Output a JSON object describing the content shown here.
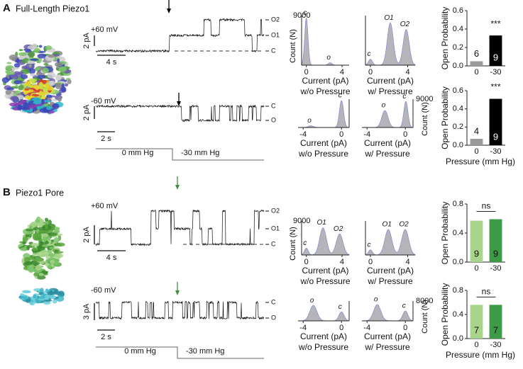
{
  "panels": [
    {
      "letter": "A",
      "title": "Full-Length Piezo1",
      "traces": [
        {
          "voltage": "+60 mV",
          "scale_y": "2 pA",
          "scale_x": "4 s",
          "levels": [
            "O2",
            "O1",
            "C"
          ]
        },
        {
          "voltage": "-60 mV",
          "scale_y": "2 pA",
          "scale_x": "2 s",
          "levels": [
            "C",
            "O"
          ]
        }
      ],
      "protocol": {
        "before": "0 mm Hg",
        "after": "-30 mm Hg"
      },
      "histogram_rows": [
        {
          "ymax": "9000",
          "ylabel": "Count (N)",
          "plots": [
            {
              "xticks": [
                "0",
                "4"
              ],
              "peaks": [
                "c",
                "o"
              ],
              "xlabel": "Current (pA)",
              "condition": "w/o Pressure"
            },
            {
              "xticks": [
                "0",
                "4"
              ],
              "peaks": [
                "c",
                "O1",
                "O2"
              ],
              "xlabel": "Current (pA)",
              "condition": "w/ Pressure"
            }
          ]
        },
        {
          "ymax": "9000",
          "ylabel": "Count (N)",
          "plots": [
            {
              "xticks": [
                "-4",
                "0"
              ],
              "peaks": [
                "o",
                "c"
              ],
              "xlabel": "Current (pA)",
              "condition": "w/o Pressure"
            },
            {
              "xticks": [
                "-4",
                "0"
              ],
              "peaks": [
                "o",
                "c"
              ],
              "xlabel": "Current (pA)",
              "condition": "w/ Pressure"
            }
          ]
        }
      ]
    },
    {
      "letter": "B",
      "title": "Piezo1 Pore",
      "traces": [
        {
          "voltage": "+60 mV",
          "scale_y": "2 pA",
          "scale_x": "4 s",
          "levels": [
            "O2",
            "O1",
            "C"
          ]
        },
        {
          "voltage": "-60 mV",
          "scale_y": "3 pA",
          "scale_x": "2 s",
          "levels": [
            "C",
            "O"
          ]
        }
      ],
      "protocol": {
        "before": "0 mm Hg",
        "after": "-30 mm Hg"
      },
      "histogram_rows": [
        {
          "ymax": "9000",
          "ylabel": "Count (N)",
          "plots": [
            {
              "xticks": [
                "0",
                "4"
              ],
              "peaks": [
                "c",
                "O1",
                "O2"
              ],
              "xlabel": "Current (pA)",
              "condition": "w/o Pressure"
            },
            {
              "xticks": [
                "0",
                "4"
              ],
              "peaks": [
                "c",
                "O1",
                "O2"
              ],
              "xlabel": "Current (pA)",
              "condition": "w/ Pressure"
            }
          ]
        },
        {
          "ymax": "8000",
          "ylabel": "Count (N)",
          "plots": [
            {
              "xticks": [
                "-4",
                "0"
              ],
              "peaks": [
                "o",
                "c"
              ],
              "xlabel": "Current (pA)",
              "condition": "w/o Pressure"
            },
            {
              "xticks": [
                "-4",
                "0"
              ],
              "peaks": [
                "o",
                "c"
              ],
              "xlabel": "Current (pA)",
              "condition": "w/ Pressure"
            }
          ]
        }
      ]
    }
  ],
  "chart_data": [
    {
      "type": "bar",
      "ylabel": "Open Probability",
      "categories": [
        "0",
        "-30"
      ],
      "values": [
        0.05,
        0.33
      ],
      "colors": [
        "#9a9a9a",
        "#000000"
      ],
      "n": [
        6,
        9
      ],
      "annotation": "***",
      "ylim": [
        0,
        0.6
      ],
      "yticks": [
        {
          "value": 0,
          "label": "0.0"
        },
        0.2,
        0.4,
        0.6
      ]
    },
    {
      "type": "bar",
      "ylabel": "Open Probability",
      "xlabel": "Pressure (mm Hg)",
      "categories": [
        "0",
        "-30"
      ],
      "values": [
        0.07,
        0.51
      ],
      "colors": [
        "#9a9a9a",
        "#000000"
      ],
      "n": [
        4,
        9
      ],
      "annotation": "***",
      "ylim": [
        0,
        0.6
      ],
      "yticks": [
        {
          "value": 0,
          "label": "0.0"
        },
        0.2,
        0.4,
        0.6
      ]
    },
    {
      "type": "bar",
      "ylabel": "Open Probability",
      "categories": [
        "0",
        "-30"
      ],
      "values": [
        0.57,
        0.59
      ],
      "colors": [
        "#a9d48c",
        "#3f9a48"
      ],
      "n": [
        9,
        9
      ],
      "annotation": "ns",
      "ylim": [
        0,
        0.8
      ],
      "yticks": [
        {
          "value": 0,
          "label": "0.0"
        },
        0.4,
        0.8
      ]
    },
    {
      "type": "bar",
      "ylabel": "Open Probability",
      "xlabel": "Pressure (mm Hg)",
      "categories": [
        "0",
        "-30"
      ],
      "values": [
        0.56,
        0.56
      ],
      "colors": [
        "#a9d48c",
        "#3f9a48"
      ],
      "n": [
        7,
        7
      ],
      "annotation": "ns",
      "ylim": [
        0,
        0.8
      ],
      "yticks": [
        {
          "value": 0,
          "label": "0.0"
        },
        0.4,
        0.8
      ]
    }
  ]
}
